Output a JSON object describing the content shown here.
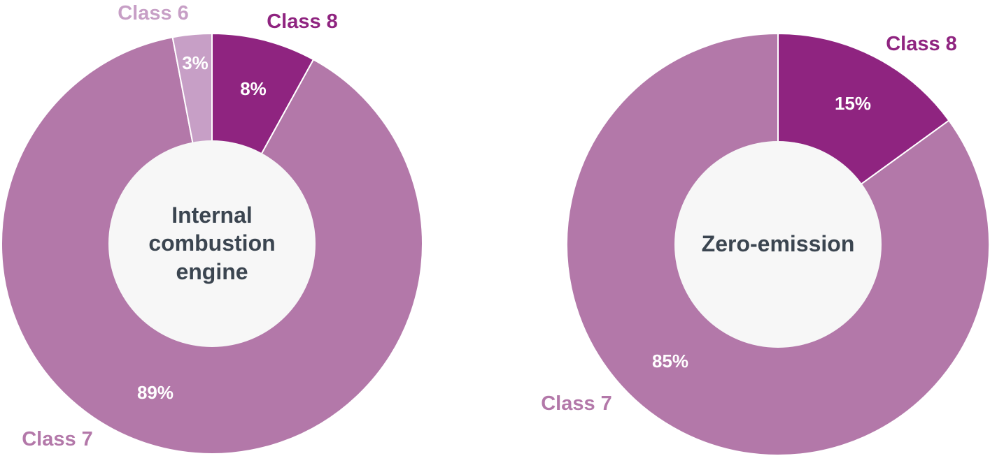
{
  "colors": {
    "class_6": "#c79fc6",
    "class_7": "#b378a9",
    "class_8": "#8f2480",
    "center_text": "#3b4550",
    "center_fill": "#f7f7f7"
  },
  "chart_data": [
    {
      "type": "pie",
      "center_label": [
        "Internal",
        "combustion",
        "engine"
      ],
      "slices": [
        {
          "label": "Class 8",
          "value": 8,
          "value_label": "8%",
          "color": "#8f2480"
        },
        {
          "label": "Class 7",
          "value": 89,
          "value_label": "89%",
          "color": "#b378a9"
        },
        {
          "label": "Class 6",
          "value": 3,
          "value_label": "3%",
          "color": "#c79fc6"
        }
      ]
    },
    {
      "type": "pie",
      "center_label": [
        "Zero-emission"
      ],
      "slices": [
        {
          "label": "Class 8",
          "value": 15,
          "value_label": "15%",
          "color": "#8f2480"
        },
        {
          "label": "Class 7",
          "value": 85,
          "value_label": "85%",
          "color": "#b378a9"
        }
      ]
    }
  ]
}
